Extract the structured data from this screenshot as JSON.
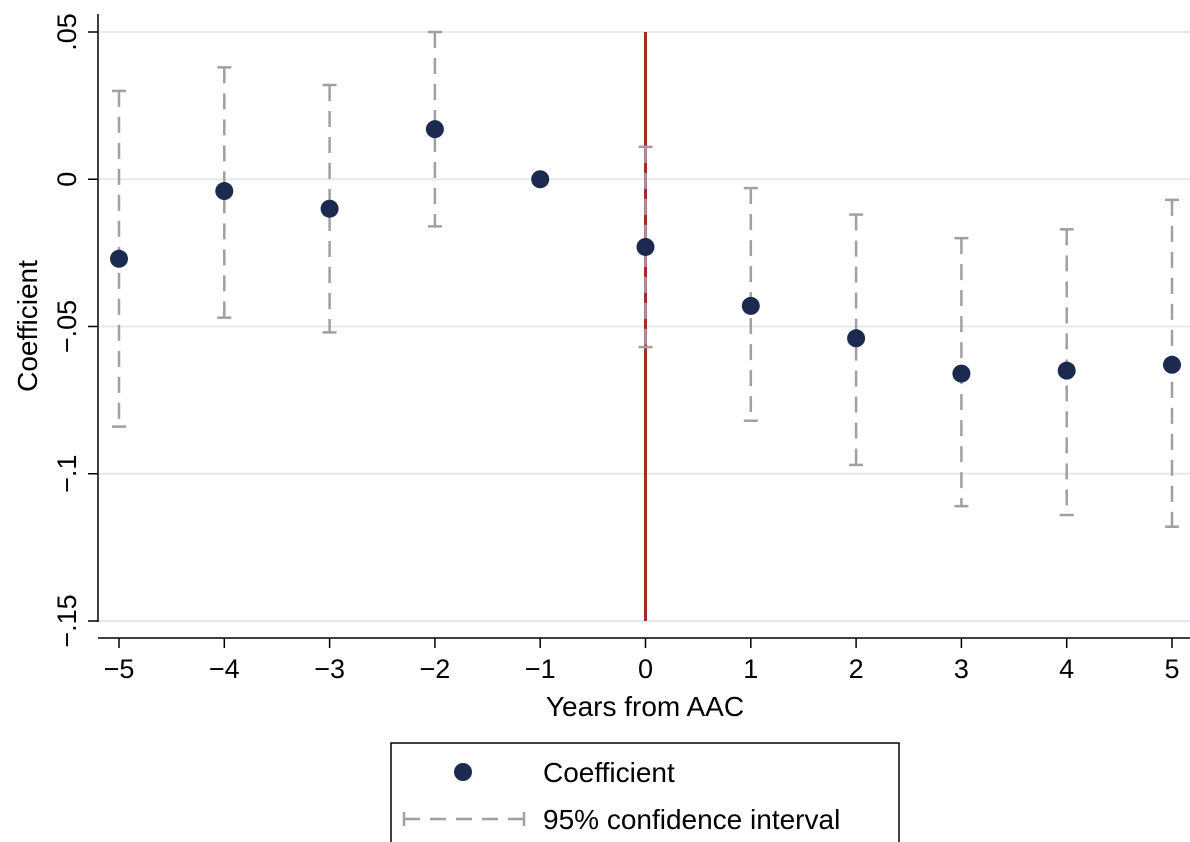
{
  "chart_data": {
    "type": "scatter",
    "xlabel": "Years from AAC",
    "ylabel": "Coefficient",
    "x_ticks": [
      -5,
      -4,
      -3,
      -2,
      -1,
      0,
      1,
      2,
      3,
      4,
      5
    ],
    "x_tick_labels": [
      "−5",
      "−4",
      "−3",
      "−2",
      "−1",
      "0",
      "1",
      "2",
      "3",
      "4",
      "5"
    ],
    "y_ticks": [
      0.05,
      0,
      -0.05,
      -0.1,
      -0.15
    ],
    "y_tick_labels": [
      ".05",
      "0",
      "−.05",
      "−.1",
      "−.15"
    ],
    "xlim": [
      -5,
      5
    ],
    "ylim": [
      -0.15,
      0.05
    ],
    "grid": true,
    "reference_line": {
      "x": 0,
      "color": "#a52a2a"
    },
    "series": [
      {
        "name": "Coefficient",
        "marker": "circle",
        "color": "#1b2a4e",
        "x": [
          -5,
          -4,
          -3,
          -2,
          -1,
          0,
          1,
          2,
          3,
          4,
          5
        ],
        "values": [
          -0.027,
          -0.004,
          -0.01,
          0.017,
          0.0,
          -0.023,
          -0.043,
          -0.054,
          -0.066,
          -0.065,
          -0.063
        ]
      },
      {
        "name": "95% confidence interval",
        "style": "dashed",
        "color": "#a0a0a0",
        "x": [
          -5,
          -4,
          -3,
          -2,
          0,
          1,
          2,
          3,
          4,
          5
        ],
        "lower": [
          -0.084,
          -0.047,
          -0.052,
          -0.016,
          -0.057,
          -0.082,
          -0.097,
          -0.111,
          -0.114,
          -0.118
        ],
        "upper": [
          0.03,
          0.038,
          0.032,
          0.05,
          0.011,
          -0.003,
          -0.012,
          -0.02,
          -0.017,
          -0.007
        ]
      }
    ],
    "legend_position": "bottom-center",
    "legend": [
      {
        "label": "Coefficient",
        "symbol": "dot"
      },
      {
        "label": "95% confidence interval",
        "symbol": "capped-dashed-line"
      }
    ]
  }
}
